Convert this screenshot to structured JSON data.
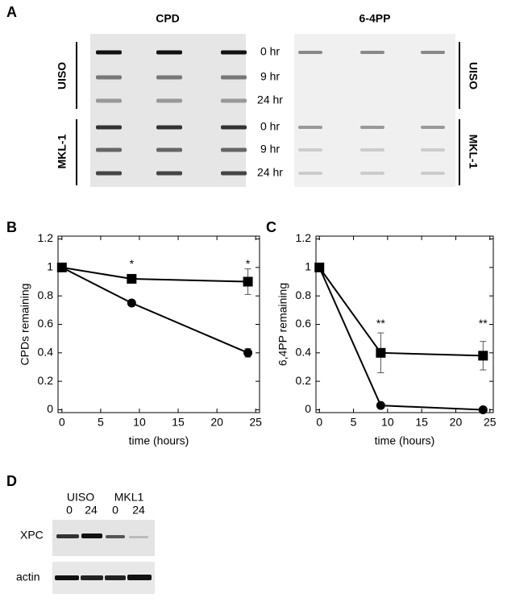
{
  "panel_a": {
    "label": "A",
    "left_title": "CPD",
    "right_title": "6-4PP",
    "times": [
      "0 hr",
      "9 hr",
      "24 hr",
      "0 hr",
      "9 hr",
      "24 hr"
    ],
    "groups": [
      "UISO",
      "MKL-1"
    ]
  },
  "chart_data": [
    {
      "type": "line",
      "panel": "B",
      "x_label": "time (hours)",
      "y_label": "CPDs remaining",
      "x": [
        0,
        9,
        24
      ],
      "xlim": [
        -0.5,
        25.5
      ],
      "xticks": [
        0,
        5,
        10,
        15,
        20,
        25
      ],
      "ylim": [
        -0.02,
        1.22
      ],
      "yticks": [
        0,
        0.2,
        0.4,
        0.6,
        0.8,
        1,
        1.2
      ],
      "series": [
        {
          "marker": "square",
          "color": "#000000",
          "values": [
            1,
            0.92,
            0.9
          ],
          "errors": [
            0,
            0.02,
            0.09
          ]
        },
        {
          "marker": "circle",
          "color": "#000000",
          "values": [
            1,
            0.75,
            0.4
          ],
          "errors": [
            0,
            0.01,
            0.03
          ]
        }
      ],
      "annotations": [
        {
          "text": "*",
          "x": 9,
          "y": 1.02
        },
        {
          "text": "*",
          "x": 24,
          "y": 1.02
        }
      ]
    },
    {
      "type": "line",
      "panel": "C",
      "x_label": "time (hours)",
      "y_label": "6,4PP remaining",
      "x": [
        0,
        9,
        24
      ],
      "xlim": [
        -0.5,
        25.5
      ],
      "xticks": [
        0,
        5,
        10,
        15,
        20,
        25
      ],
      "ylim": [
        -0.02,
        1.22
      ],
      "yticks": [
        0,
        0.2,
        0.4,
        0.6,
        0.8,
        1,
        1.2
      ],
      "series": [
        {
          "marker": "square",
          "color": "#000000",
          "values": [
            1,
            0.4,
            0.38
          ],
          "errors": [
            0,
            0.14,
            0.1
          ]
        },
        {
          "marker": "circle",
          "color": "#000000",
          "values": [
            1,
            0.03,
            0
          ],
          "errors": [
            0,
            0.01,
            0.01
          ]
        }
      ],
      "annotations": [
        {
          "text": "**",
          "x": 9,
          "y": 0.6
        },
        {
          "text": "**",
          "x": 24,
          "y": 0.6
        }
      ]
    }
  ],
  "panel_d": {
    "label": "D",
    "groups": [
      "UISO",
      "MKL1"
    ],
    "times": [
      "0",
      "24",
      "0",
      "24"
    ],
    "rows": [
      "XPC",
      "actin"
    ]
  }
}
